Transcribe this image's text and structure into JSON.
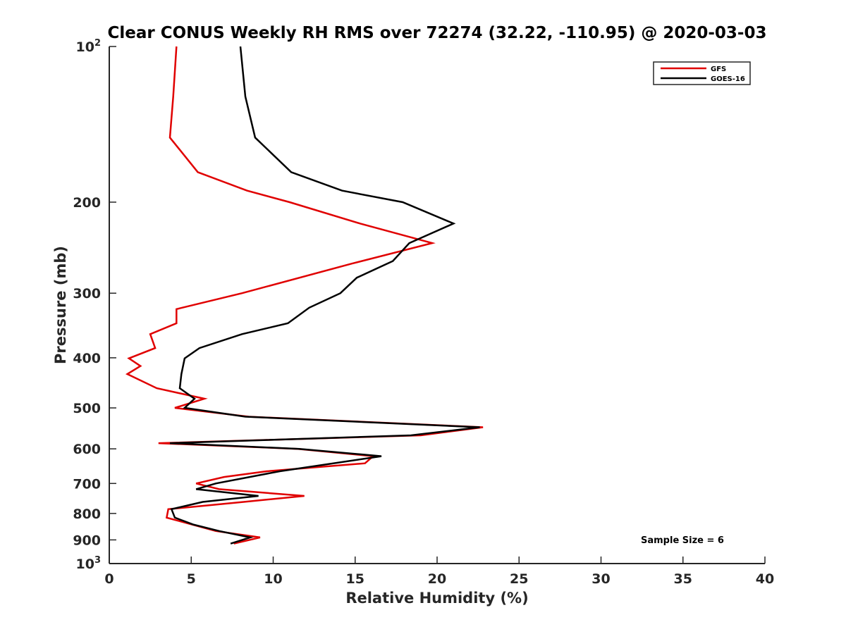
{
  "chart_data": {
    "type": "line",
    "title": "Clear CONUS Weekly RH RMS over 72274 (32.22, -110.95) @ 2020-03-03",
    "xlabel": "Relative Humidity (%)",
    "ylabel": "Pressure (mb)",
    "xlim": [
      0,
      40
    ],
    "ylim": [
      1000,
      100
    ],
    "y_scale": "log",
    "y_reversed": true,
    "x_ticks": [
      0,
      5,
      10,
      15,
      20,
      25,
      30,
      35,
      40
    ],
    "x_tick_labels": [
      "0",
      "5",
      "10",
      "15",
      "20",
      "25",
      "30",
      "35",
      "40"
    ],
    "y_ticks": [
      100,
      200,
      300,
      400,
      500,
      600,
      700,
      800,
      900,
      1000
    ],
    "y_tick_labels": [
      {
        "base": "10",
        "sup": "2"
      },
      {
        "base": "200",
        "sup": ""
      },
      {
        "base": "300",
        "sup": ""
      },
      {
        "base": "400",
        "sup": ""
      },
      {
        "base": "500",
        "sup": ""
      },
      {
        "base": "600",
        "sup": ""
      },
      {
        "base": "700",
        "sup": ""
      },
      {
        "base": "800",
        "sup": ""
      },
      {
        "base": "900",
        "sup": ""
      },
      {
        "base": "10",
        "sup": "3"
      }
    ],
    "grid": false,
    "legend_position": "top-right",
    "annotation": "Sample Size = 6",
    "series": [
      {
        "name": "GFS",
        "color": "#e00000",
        "points": [
          [
            4.1,
            100
          ],
          [
            3.9,
            125
          ],
          [
            3.7,
            150
          ],
          [
            5.4,
            175
          ],
          [
            8.4,
            190
          ],
          [
            11.0,
            200
          ],
          [
            15.3,
            220
          ],
          [
            19.7,
            240
          ],
          [
            14.8,
            263
          ],
          [
            8.1,
            300
          ],
          [
            4.1,
            322
          ],
          [
            4.1,
            343
          ],
          [
            2.5,
            360
          ],
          [
            2.8,
            383
          ],
          [
            1.2,
            401
          ],
          [
            1.9,
            415
          ],
          [
            1.1,
            430
          ],
          [
            2.9,
            458
          ],
          [
            5.8,
            480
          ],
          [
            4.0,
            500
          ],
          [
            8.5,
            520
          ],
          [
            22.8,
            545
          ],
          [
            19.0,
            565
          ],
          [
            3.0,
            585
          ],
          [
            11.5,
            600
          ],
          [
            16.1,
            620
          ],
          [
            15.6,
            640
          ],
          [
            9.6,
            663
          ],
          [
            7.0,
            680
          ],
          [
            5.3,
            700
          ],
          [
            6.7,
            718
          ],
          [
            11.9,
            740
          ],
          [
            8.2,
            760
          ],
          [
            3.6,
            785
          ],
          [
            3.5,
            815
          ],
          [
            6.5,
            865
          ],
          [
            9.2,
            890
          ],
          [
            7.6,
            915
          ]
        ]
      },
      {
        "name": "GOES-16",
        "color": "#000000",
        "points": [
          [
            8.0,
            100
          ],
          [
            8.3,
            125
          ],
          [
            8.9,
            150
          ],
          [
            11.1,
            175
          ],
          [
            14.2,
            190
          ],
          [
            17.9,
            200
          ],
          [
            21.0,
            220
          ],
          [
            18.3,
            240
          ],
          [
            17.3,
            260
          ],
          [
            15.1,
            280
          ],
          [
            14.1,
            300
          ],
          [
            12.2,
            320
          ],
          [
            10.9,
            343
          ],
          [
            8.1,
            360
          ],
          [
            5.5,
            383
          ],
          [
            4.6,
            401
          ],
          [
            4.4,
            430
          ],
          [
            4.3,
            458
          ],
          [
            5.2,
            480
          ],
          [
            4.6,
            500
          ],
          [
            8.3,
            520
          ],
          [
            22.6,
            545
          ],
          [
            18.4,
            565
          ],
          [
            3.7,
            585
          ],
          [
            11.6,
            600
          ],
          [
            16.6,
            620
          ],
          [
            10.4,
            663
          ],
          [
            6.5,
            700
          ],
          [
            5.3,
            718
          ],
          [
            9.1,
            740
          ],
          [
            5.7,
            760
          ],
          [
            3.8,
            785
          ],
          [
            4.0,
            815
          ],
          [
            5.1,
            840
          ],
          [
            6.7,
            865
          ],
          [
            8.6,
            890
          ],
          [
            7.4,
            915
          ]
        ]
      }
    ]
  }
}
